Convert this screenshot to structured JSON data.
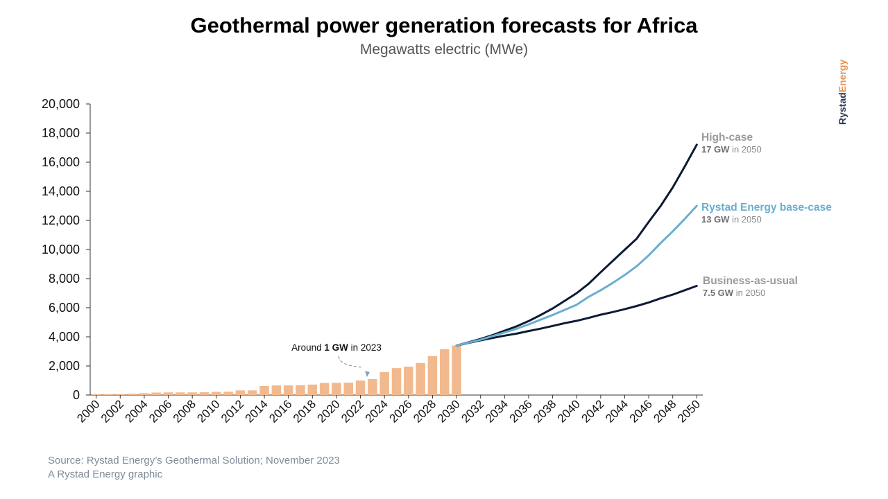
{
  "title": "Geothermal power generation forecasts for Africa",
  "subtitle": "Megawatts electric (MWe)",
  "brand": {
    "part1": "Rystad",
    "part2": "Energy",
    "color1": "#2e3b55",
    "color2": "#e8924f"
  },
  "source": "Source: Rystad Energy’s Geothermal Solution; November 2023",
  "credit": "A Rystad Energy graphic",
  "annotation": {
    "prefix": "Around ",
    "bold": "1 GW",
    "suffix": " in 2023"
  },
  "series_labels": [
    {
      "title": "High-case",
      "bold": "17 GW",
      "rest": " in 2050",
      "color": "#9a9a9a"
    },
    {
      "title": "Rystad Energy base-case",
      "bold": "13 GW",
      "rest": " in 2050",
      "color": "#6aaed0"
    },
    {
      "title": "Business-as-usual",
      "bold": "7.5 GW",
      "rest": " in 2050",
      "color": "#9a9a9a"
    }
  ],
  "chart_data": {
    "type": "bar",
    "ylim": [
      0,
      20000
    ],
    "yticks": [
      0,
      2000,
      4000,
      6000,
      8000,
      10000,
      12000,
      14000,
      16000,
      18000,
      20000
    ],
    "ytick_labels": [
      "0",
      "2,000",
      "4,000",
      "6,000",
      "8,000",
      "10,000",
      "12,000",
      "14,000",
      "16,000",
      "18,000",
      "20,000"
    ],
    "x_tick_labels": [
      "2000",
      "2002",
      "2004",
      "2006",
      "2008",
      "2010",
      "2012",
      "2014",
      "2016",
      "2018",
      "2020",
      "2022",
      "2024",
      "2026",
      "2028",
      "2030",
      "2032",
      "2034",
      "2036",
      "2038",
      "2040",
      "2042",
      "2044",
      "2046",
      "2048",
      "2050"
    ],
    "grid": false,
    "bars": {
      "color": "#f2b98e",
      "years": [
        2000,
        2001,
        2002,
        2003,
        2004,
        2005,
        2006,
        2007,
        2008,
        2009,
        2010,
        2011,
        2012,
        2013,
        2014,
        2015,
        2016,
        2017,
        2018,
        2019,
        2020,
        2021,
        2022,
        2023,
        2024,
        2025,
        2026,
        2027,
        2028,
        2029,
        2030
      ],
      "values": [
        70,
        70,
        80,
        100,
        130,
        170,
        180,
        180,
        180,
        190,
        220,
        230,
        320,
        320,
        620,
        660,
        660,
        680,
        720,
        830,
        840,
        850,
        1000,
        1100,
        1580,
        1850,
        1950,
        2200,
        2680,
        3150,
        3400
      ]
    },
    "series": [
      {
        "name": "High-case",
        "type": "line",
        "color": "#0d1a33",
        "years": [
          2030,
          2031,
          2032,
          2033,
          2034,
          2035,
          2036,
          2037,
          2038,
          2039,
          2040,
          2041,
          2042,
          2043,
          2044,
          2045,
          2046,
          2047,
          2048,
          2049,
          2050
        ],
        "values": [
          3400,
          3620,
          3850,
          4120,
          4420,
          4720,
          5080,
          5500,
          5950,
          6470,
          7000,
          7650,
          8440,
          9210,
          9980,
          10750,
          11900,
          13000,
          14260,
          15700,
          17200
        ]
      },
      {
        "name": "Rystad Energy base-case",
        "type": "line",
        "color": "#6aaed0",
        "years": [
          2030,
          2031,
          2032,
          2033,
          2034,
          2035,
          2036,
          2037,
          2038,
          2039,
          2040,
          2041,
          2042,
          2043,
          2044,
          2045,
          2046,
          2047,
          2048,
          2049,
          2050
        ],
        "values": [
          3400,
          3600,
          3800,
          4050,
          4300,
          4550,
          4850,
          5180,
          5500,
          5850,
          6200,
          6750,
          7200,
          7700,
          8250,
          8850,
          9600,
          10450,
          11250,
          12100,
          13000
        ]
      },
      {
        "name": "Business-as-usual",
        "type": "line",
        "color": "#0d1a33",
        "years": [
          2030,
          2031,
          2032,
          2033,
          2034,
          2035,
          2036,
          2037,
          2038,
          2039,
          2040,
          2041,
          2042,
          2043,
          2044,
          2045,
          2046,
          2047,
          2048,
          2049,
          2050
        ],
        "values": [
          3400,
          3580,
          3760,
          3920,
          4080,
          4220,
          4400,
          4560,
          4750,
          4940,
          5100,
          5300,
          5520,
          5700,
          5900,
          6120,
          6360,
          6650,
          6900,
          7200,
          7500
        ]
      }
    ]
  }
}
